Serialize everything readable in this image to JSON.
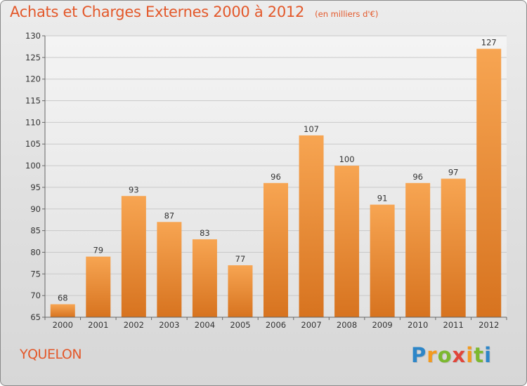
{
  "chart_data": {
    "type": "bar",
    "title": "Achats et Charges Externes 2000 à 2012",
    "subtitle": "(en milliers d'€)",
    "categories": [
      "2000",
      "2001",
      "2002",
      "2003",
      "2004",
      "2005",
      "2006",
      "2007",
      "2008",
      "2009",
      "2010",
      "2011",
      "2012"
    ],
    "values": [
      68,
      79,
      93,
      87,
      83,
      77,
      96,
      107,
      100,
      91,
      96,
      97,
      127
    ],
    "ylim": [
      65,
      130
    ],
    "yticks": [
      65,
      70,
      75,
      80,
      85,
      90,
      95,
      100,
      105,
      110,
      115,
      120,
      125,
      130
    ],
    "grid": true,
    "bar_color": "#f08a2c"
  },
  "place_name": "YQUELON",
  "logo": {
    "letters": [
      "P",
      "r",
      "o",
      "x",
      "i",
      "t",
      "i"
    ],
    "colors": [
      "#2d86c8",
      "#f39a1f",
      "#7cb82f",
      "#e0453a",
      "#f39a1f",
      "#7cb82f",
      "#2d86c8"
    ]
  }
}
